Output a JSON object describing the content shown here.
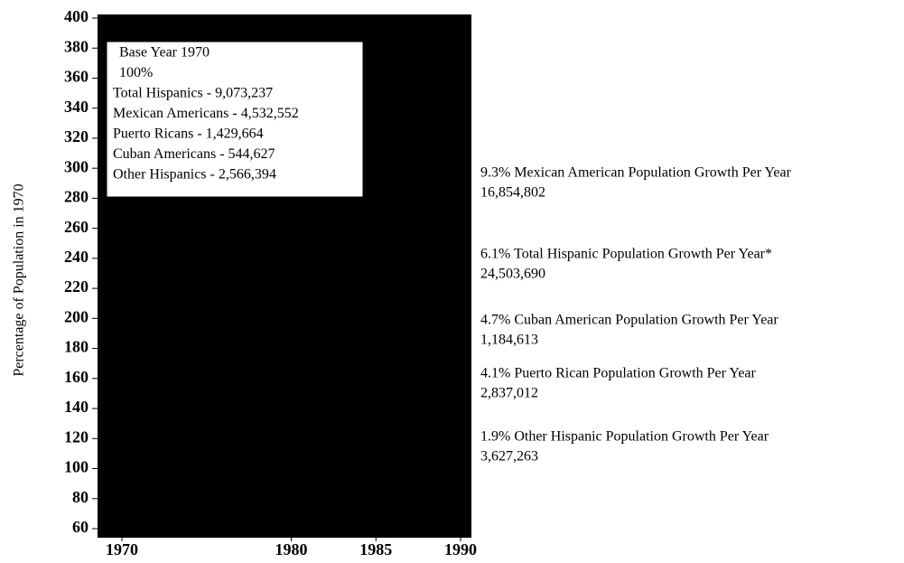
{
  "chart_data": {
    "type": "line",
    "y_label": "Percentage of Population in 1970",
    "xlim": [
      1968.56,
      1990.64
    ],
    "xticks": [
      1970,
      1980,
      1985,
      1990
    ],
    "ylim": [
      60,
      400
    ],
    "yticks": [
      60,
      80,
      100,
      120,
      140,
      160,
      180,
      200,
      220,
      240,
      260,
      280,
      300,
      320,
      340,
      360,
      380,
      400
    ],
    "legend_box": [
      "Base Year 1970",
      "100%",
      "Total Hispanics - 9,073,237",
      "Mexican Americans - 4,532,552",
      "Puerto Ricans - 1,429,664",
      "Cuban Americans - 544,627",
      "Other Hispanics - 2,566,394"
    ],
    "annotations": [
      {
        "text": "9.3% Mexican American Population Growth Per Year",
        "value": "16,854,802"
      },
      {
        "text": "6.1% Total Hispanic Population Growth Per Year*",
        "value": "24,503,690"
      },
      {
        "text": "4.7% Cuban American Population Growth Per Year",
        "value": "1,184,613"
      },
      {
        "text": "4.1% Puerto Rican Population Growth Per Year",
        "value": "2,837,012"
      },
      {
        "text": "1.9% Other Hispanic Population Growth Per Year",
        "value": "3,627,263"
      }
    ]
  }
}
